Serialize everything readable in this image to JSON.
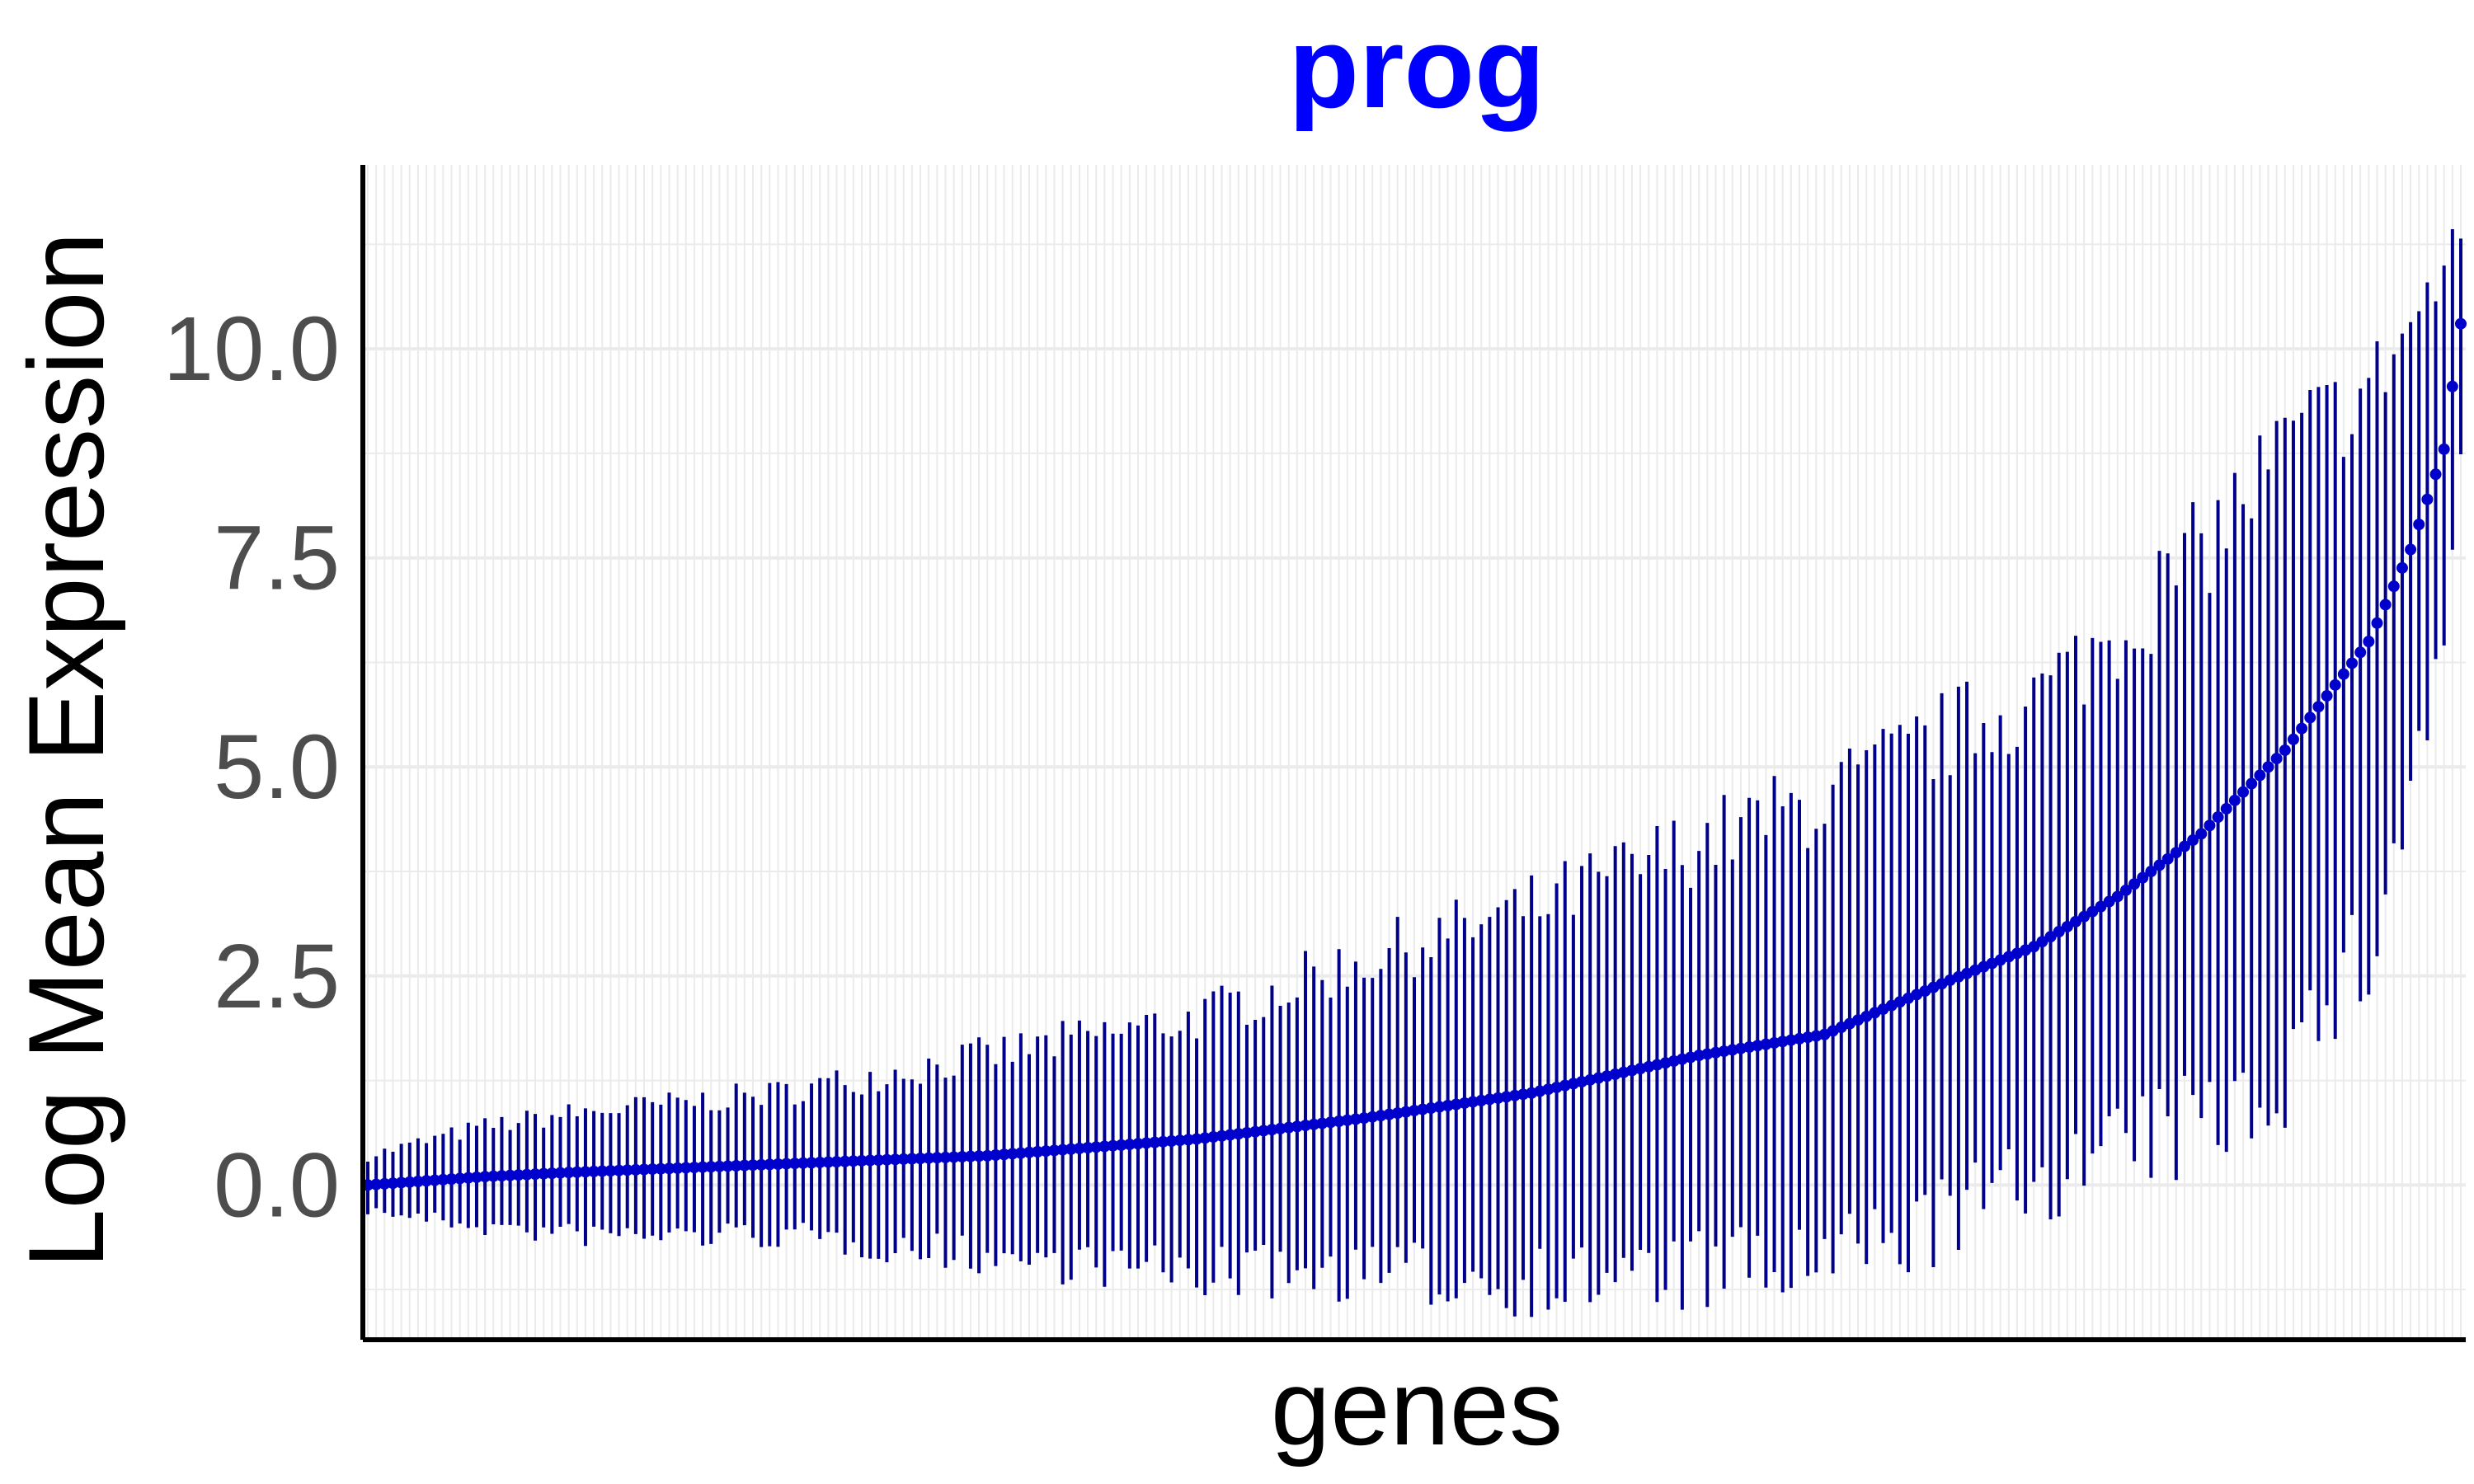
{
  "chart_data": {
    "type": "scatter",
    "title": "prog",
    "xlabel": "genes",
    "ylabel": "Log Mean Expression",
    "x_tick_labels": "none",
    "ylim": [
      -1.85,
      12.2
    ],
    "yticks": [
      0.0,
      2.5,
      5.0,
      7.5,
      10.0
    ],
    "ytick_labels": [
      "0.0",
      "2.5",
      "5.0",
      "7.5",
      "10.0"
    ],
    "grid": true,
    "minor_grid": true,
    "legend": "none",
    "error_bars": true,
    "n_genes": 251,
    "colors": {
      "title": "#0000ff",
      "points": "#0000cd",
      "error_bars": "#00008b",
      "grid": "#ebebeb",
      "axis_line": "#000000",
      "tick_labels": "#4d4d4d"
    },
    "series": [
      {
        "name": "",
        "mean_profile": [
          {
            "rank": 1,
            "mean": 0.0,
            "low": -0.3,
            "high": 0.35
          },
          {
            "rank": 15,
            "mean": 0.1,
            "low": -0.5,
            "high": 0.7
          },
          {
            "rank": 25,
            "mean": 0.15,
            "low": -0.6,
            "high": 0.85
          },
          {
            "rank": 50,
            "mean": 0.25,
            "low": -0.6,
            "high": 1.1
          },
          {
            "rank": 75,
            "mean": 0.35,
            "low": -0.85,
            "high": 1.55
          },
          {
            "rank": 100,
            "mean": 0.55,
            "low": -1.05,
            "high": 2.0
          },
          {
            "rank": 120,
            "mean": 0.8,
            "low": -1.05,
            "high": 2.7
          },
          {
            "rank": 140,
            "mean": 1.1,
            "low": -1.15,
            "high": 3.3
          },
          {
            "rank": 160,
            "mean": 1.55,
            "low": -1.05,
            "high": 4.1
          },
          {
            "rank": 175,
            "mean": 1.8,
            "low": -0.95,
            "high": 4.6
          },
          {
            "rank": 190,
            "mean": 2.45,
            "low": -0.4,
            "high": 5.4
          },
          {
            "rank": 200,
            "mean": 2.85,
            "low": 0.05,
            "high": 5.8
          },
          {
            "rank": 210,
            "mean": 3.45,
            "low": 0.4,
            "high": 6.6
          },
          {
            "rank": 220,
            "mean": 4.2,
            "low": 0.7,
            "high": 7.6
          },
          {
            "rank": 230,
            "mean": 5.2,
            "low": 1.4,
            "high": 8.8
          },
          {
            "rank": 240,
            "mean": 6.5,
            "low": 2.8,
            "high": 9.5
          },
          {
            "rank": 245,
            "mean": 7.6,
            "low": 4.7,
            "high": 10.3
          },
          {
            "rank": 249,
            "mean": 8.8,
            "low": 6.5,
            "high": 10.9
          },
          {
            "rank": 251,
            "mean": 10.3,
            "low": 8.8,
            "high": 11.4
          }
        ]
      }
    ]
  }
}
